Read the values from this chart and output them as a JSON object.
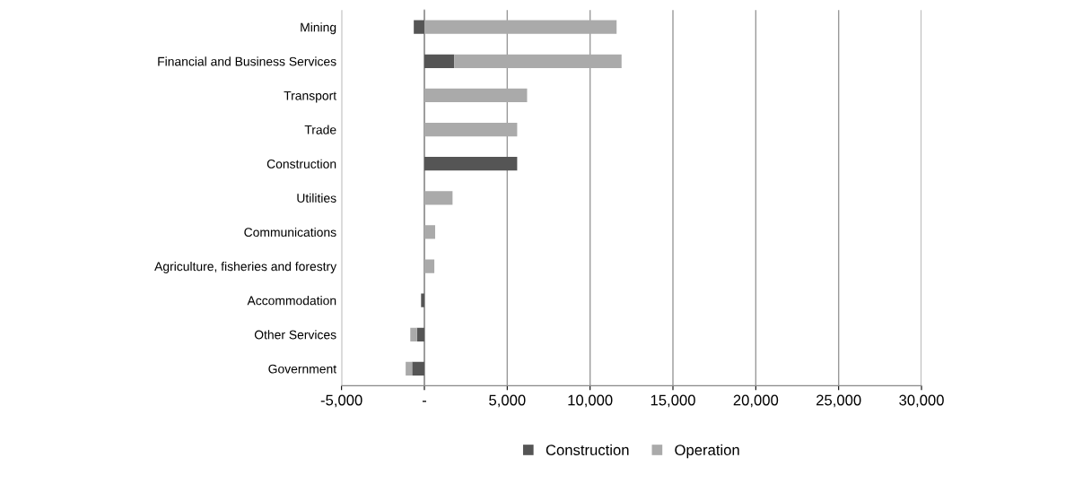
{
  "chart_data": {
    "type": "bar",
    "orientation": "horizontal",
    "stacked": true,
    "categories": [
      "Mining",
      "Financial and Business Services",
      "Transport",
      "Trade",
      "Construction",
      "Utilities",
      "Communications",
      "Agriculture, fisheries and forestry",
      "Accommodation",
      "Other Services",
      "Government"
    ],
    "series": [
      {
        "name": "Construction",
        "color": "#555555",
        "values": [
          -640,
          1800,
          0,
          0,
          5600,
          0,
          0,
          0,
          -200,
          -450,
          -740
        ]
      },
      {
        "name": "Operation",
        "color": "#aaaaaa",
        "values": [
          11600,
          10100,
          6200,
          5600,
          0,
          1700,
          650,
          600,
          0,
          -400,
          -390
        ]
      }
    ],
    "xlim": [
      -5000,
      30000
    ],
    "xticks": [
      {
        "value": -5000,
        "label": "-5,000"
      },
      {
        "value": 0,
        "label": "-"
      },
      {
        "value": 5000,
        "label": "5,000"
      },
      {
        "value": 10000,
        "label": "10,000"
      },
      {
        "value": 15000,
        "label": "15,000"
      },
      {
        "value": 20000,
        "label": "20,000"
      },
      {
        "value": 25000,
        "label": "25,000"
      },
      {
        "value": 30000,
        "label": "30,000"
      }
    ],
    "grid": "x",
    "legend": "bottom"
  }
}
